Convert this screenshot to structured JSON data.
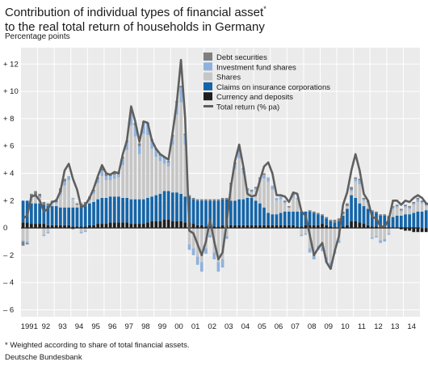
{
  "header": {
    "title_line1": "Contribution of individual types of financial asset",
    "title_sup": "*",
    "title_line2": "to the real total return of households in Germany",
    "unit": "Percentage points"
  },
  "footer": {
    "footnote": "* Weighted according to share of total financial assets.",
    "source": "Deutsche Bundesbank"
  },
  "colors": {
    "debt": "#7f7f7f",
    "funds": "#8fb2dc",
    "shares": "#c6c6c6",
    "insurance": "#1565a8",
    "currency": "#1e1e1e",
    "total": "#5f5f5f",
    "plot_bg": "#ebebeb",
    "grid": "#ffffff"
  },
  "chart_data": {
    "type": "bar",
    "stacked": true,
    "quarters_per_year": 4,
    "ylim": [
      -6.5,
      13.2
    ],
    "yticks": [
      -6,
      -4,
      -2,
      0,
      2,
      4,
      6,
      8,
      10,
      12
    ],
    "ytick_labels": [
      "– 6",
      "– 4",
      "– 2",
      "0",
      "+ 2",
      "+ 4",
      "+ 6",
      "+ 8",
      "+ 10",
      "+ 12"
    ],
    "year_labels": [
      "1991",
      "92",
      "93",
      "94",
      "95",
      "96",
      "97",
      "98",
      "99",
      "00",
      "01",
      "02",
      "03",
      "04",
      "05",
      "06",
      "07",
      "08",
      "09",
      "10",
      "11",
      "12",
      "13",
      "14"
    ],
    "legend_position": "top-center",
    "series": [
      {
        "name": "Debt securities",
        "key": "debt",
        "kind": "bar"
      },
      {
        "name": "Investment fund shares",
        "key": "funds",
        "kind": "bar"
      },
      {
        "name": "Shares",
        "key": "shares",
        "kind": "bar"
      },
      {
        "name": "Claims on insurance corporations",
        "key": "insurance",
        "kind": "bar"
      },
      {
        "name": "Currency and deposits",
        "key": "currency",
        "kind": "bar"
      },
      {
        "name": "Total return (% pa)",
        "key": "total",
        "kind": "line"
      }
    ],
    "bars": {
      "currency": [
        0.4,
        0.4,
        0.3,
        0.3,
        0.3,
        0.3,
        0.2,
        0.2,
        0.2,
        0.2,
        0.2,
        0.2,
        0.1,
        0.1,
        0.1,
        0.1,
        0.2,
        0.2,
        0.3,
        0.3,
        0.3,
        0.4,
        0.4,
        0.4,
        0.4,
        0.4,
        0.3,
        0.3,
        0.3,
        0.3,
        0.4,
        0.5,
        0.5,
        0.5,
        0.6,
        0.6,
        0.5,
        0.5,
        0.5,
        0.4,
        0.4,
        0.3,
        0.2,
        0.2,
        0.1,
        0.1,
        0.1,
        0.1,
        0.2,
        0.2,
        0.2,
        0.2,
        0.2,
        0.2,
        0.2,
        0.2,
        0.2,
        0.2,
        0.2,
        0.2,
        0.2,
        0.2,
        0.2,
        0.2,
        0.2,
        0.2,
        0.1,
        0.1,
        0.2,
        0.2,
        0.2,
        0.2,
        0.3,
        0.2,
        0.1,
        0.0,
        0.0,
        0.1,
        0.2,
        0.5,
        0.5,
        0.4,
        0.3,
        0.2,
        0.1,
        0.1,
        0.0,
        0.0,
        0.0,
        0.0,
        0.0,
        -0.1,
        -0.2,
        -0.2,
        -0.3,
        -0.3,
        -0.3,
        -0.3,
        -0.3,
        -0.3
      ],
      "insurance": [
        1.6,
        1.6,
        1.5,
        1.5,
        1.5,
        1.4,
        1.4,
        1.4,
        1.4,
        1.3,
        1.3,
        1.3,
        1.4,
        1.4,
        1.5,
        1.5,
        1.6,
        1.7,
        1.8,
        1.9,
        1.9,
        1.9,
        1.9,
        1.9,
        1.8,
        1.8,
        1.8,
        1.8,
        1.8,
        1.8,
        1.8,
        1.8,
        1.9,
        2.0,
        2.1,
        2.1,
        2.1,
        2.1,
        2.0,
        1.9,
        1.9,
        1.8,
        1.8,
        1.8,
        1.9,
        1.9,
        1.9,
        1.9,
        1.9,
        1.9,
        1.8,
        1.8,
        1.9,
        1.9,
        2.0,
        2.0,
        1.8,
        1.6,
        1.3,
        0.9,
        0.8,
        0.8,
        0.9,
        1.0,
        1.0,
        1.0,
        1.1,
        1.1,
        1.0,
        1.0,
        0.9,
        0.8,
        0.6,
        0.5,
        0.4,
        0.4,
        0.5,
        0.8,
        1.2,
        1.9,
        1.7,
        1.4,
        1.3,
        1.2,
        1.1,
        1.0,
        0.9,
        0.9,
        0.8,
        0.8,
        0.9,
        0.9,
        1.0,
        1.0,
        1.1,
        1.2,
        1.2,
        1.3,
        1.3,
        1.4
      ],
      "shares": [
        -0.9,
        -1.0,
        0.4,
        0.5,
        0.4,
        -0.5,
        -0.3,
        0.2,
        0.2,
        0.9,
        1.6,
        2.0,
        0.6,
        0.2,
        -0.3,
        -0.2,
        0.2,
        0.6,
        1.2,
        1.6,
        1.3,
        1.2,
        1.3,
        1.4,
        2.4,
        3.5,
        5.4,
        4.6,
        3.3,
        4.8,
        4.6,
        3.5,
        2.8,
        2.4,
        2.0,
        1.8,
        3.5,
        5.7,
        6.7,
        3.8,
        -1.2,
        -1.5,
        -2.1,
        -2.5,
        -1.5,
        -0.5,
        -1.8,
        -2.5,
        -2.3,
        -0.6,
        1.0,
        2.3,
        3.0,
        1.9,
        0.5,
        0.4,
        0.8,
        1.6,
        2.1,
        2.3,
        1.8,
        1.0,
        1.0,
        0.6,
        0.3,
        1.0,
        0.9,
        -0.5,
        -0.4,
        -1.5,
        -1.9,
        -1.3,
        -1.4,
        -2.1,
        -2.5,
        -1.6,
        -0.9,
        0.1,
        0.2,
        0.3,
        1.2,
        1.4,
        0.4,
        0.4,
        -0.7,
        -0.6,
        -0.9,
        -0.8,
        -0.4,
        0.6,
        0.6,
        0.3,
        0.5,
        0.4,
        0.6,
        0.7,
        0.6,
        0.3,
        0.2,
        0.0
      ],
      "funds": [
        -0.1,
        -0.1,
        0.1,
        0.1,
        0.1,
        -0.1,
        -0.1,
        0.1,
        0.1,
        0.2,
        0.3,
        0.3,
        0.1,
        0.0,
        -0.1,
        -0.1,
        0.1,
        0.2,
        0.3,
        0.4,
        0.3,
        0.3,
        0.3,
        0.3,
        0.5,
        0.6,
        0.9,
        0.8,
        0.6,
        0.8,
        0.8,
        0.6,
        0.5,
        0.4,
        0.4,
        0.3,
        0.6,
        0.9,
        1.1,
        0.7,
        -0.4,
        -0.5,
        -0.6,
        -0.7,
        -0.4,
        -0.2,
        -0.5,
        -0.7,
        -0.6,
        -0.2,
        0.2,
        0.4,
        0.5,
        0.3,
        0.1,
        0.1,
        0.1,
        0.2,
        0.3,
        0.3,
        0.3,
        0.2,
        0.2,
        0.1,
        0.0,
        0.2,
        0.1,
        -0.1,
        -0.1,
        -0.3,
        -0.4,
        -0.3,
        -0.3,
        -0.4,
        -0.5,
        -0.3,
        -0.2,
        0.0,
        0.0,
        0.1,
        0.2,
        0.3,
        0.1,
        0.1,
        -0.1,
        -0.1,
        -0.2,
        -0.2,
        -0.1,
        0.1,
        0.1,
        0.1,
        0.1,
        0.1,
        0.1,
        0.2,
        0.1,
        0.1,
        0.0,
        0.0
      ],
      "debt": [
        -0.3,
        -0.1,
        0.2,
        0.3,
        0.2,
        0.2,
        0.2,
        0.1,
        0.2,
        0.3,
        0.2,
        0.0,
        -0.1,
        0.1,
        0.2,
        0.3,
        0.2,
        0.1,
        0.1,
        0.2,
        0.2,
        0.2,
        0.2,
        0.1,
        0.1,
        0.1,
        0.1,
        0.2,
        0.2,
        0.1,
        0.1,
        0.1,
        0.1,
        0.1,
        0.1,
        0.1,
        0.1,
        0.1,
        0.1,
        0.1,
        0.1,
        0.1,
        0.1,
        0.1,
        0.1,
        0.1,
        0.1,
        0.1,
        0.1,
        0.1,
        0.1,
        0.1,
        0.1,
        0.1,
        0.1,
        0.1,
        0.1,
        0.1,
        0.1,
        0.0,
        0.0,
        0.0,
        0.0,
        0.1,
        0.1,
        0.1,
        0.0,
        0.0,
        0.0,
        0.1,
        0.1,
        0.1,
        0.1,
        0.1,
        0.1,
        0.2,
        0.2,
        0.2,
        0.2,
        0.2,
        0.1,
        0.1,
        0.1,
        0.1,
        0.1,
        0.1,
        0.1,
        0.1,
        0.1,
        0.1,
        0.1,
        0.1,
        0.1,
        0.1,
        0.1,
        0.1,
        0.1,
        0.1,
        0.1,
        0.1
      ]
    },
    "total": [
      0.7,
      0.9,
      2.3,
      2.4,
      2.0,
      1.2,
      1.4,
      1.9,
      2.0,
      2.7,
      4.2,
      4.7,
      3.6,
      2.8,
      1.5,
      1.7,
      2.2,
      2.9,
      3.8,
      4.6,
      4.0,
      3.9,
      4.1,
      4.0,
      5.4,
      6.4,
      8.9,
      7.8,
      6.3,
      7.8,
      7.7,
      6.4,
      5.8,
      5.4,
      5.2,
      5.0,
      7.0,
      9.2,
      12.3,
      8.0,
      -0.2,
      -0.4,
      -1.2,
      -2.0,
      -1.0,
      0.6,
      -1.0,
      -2.3,
      -1.8,
      0.4,
      3.0,
      4.9,
      6.1,
      4.5,
      2.5,
      2.3,
      2.4,
      3.5,
      4.5,
      4.8,
      4.0,
      2.4,
      2.4,
      2.3,
      1.9,
      2.6,
      2.5,
      1.2,
      0.9,
      -0.5,
      -2.0,
      -1.5,
      -1.1,
      -2.5,
      -3.0,
      -1.7,
      -0.6,
      1.7,
      2.6,
      4.2,
      5.4,
      4.2,
      2.5,
      2.0,
      0.8,
      0.7,
      0.1,
      0.1,
      0.6,
      2.0,
      2.0,
      1.7,
      2.0,
      1.9,
      2.2,
      2.4,
      2.2,
      1.8,
      1.7,
      1.4
    ]
  }
}
